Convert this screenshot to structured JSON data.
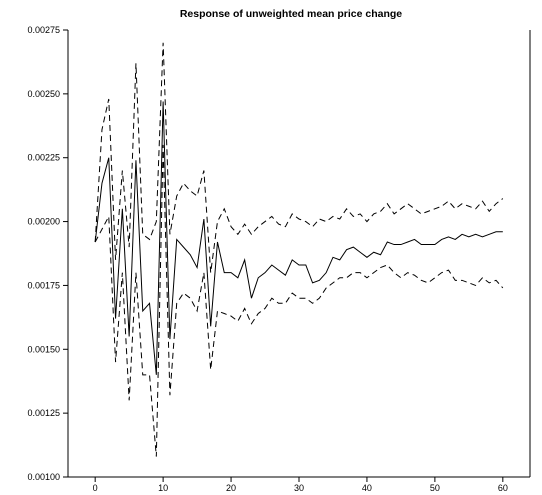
{
  "chart_data": {
    "type": "line",
    "title": "Response of unweighted mean price change",
    "xlabel": "",
    "ylabel": "",
    "xlim": [
      -4,
      64
    ],
    "ylim": [
      0.001,
      0.00275
    ],
    "x_ticks": [
      0,
      10,
      20,
      30,
      40,
      50,
      60
    ],
    "y_ticks": [
      "0.00100",
      "0.00125",
      "0.00150",
      "0.00175",
      "0.00200",
      "0.00225",
      "0.00250",
      "0.00275"
    ],
    "grid": false,
    "legend": "none",
    "x": [
      0,
      1,
      2,
      3,
      4,
      5,
      6,
      7,
      8,
      9,
      10,
      11,
      12,
      13,
      14,
      15,
      16,
      17,
      18,
      19,
      20,
      21,
      22,
      23,
      24,
      25,
      26,
      27,
      28,
      29,
      30,
      31,
      32,
      33,
      34,
      35,
      36,
      37,
      38,
      39,
      40,
      41,
      42,
      43,
      44,
      45,
      46,
      47,
      48,
      49,
      50,
      51,
      52,
      53,
      54,
      55,
      56,
      57,
      58,
      59,
      60
    ],
    "series": [
      {
        "style": "solid",
        "color": "#000000",
        "values": [
          0.00192,
          0.00215,
          0.00225,
          0.00162,
          0.00205,
          0.00155,
          0.00224,
          0.00165,
          0.00168,
          0.0014,
          0.00247,
          0.00154,
          0.00193,
          0.0019,
          0.00187,
          0.00182,
          0.00201,
          0.00159,
          0.00192,
          0.0018,
          0.0018,
          0.00178,
          0.00185,
          0.0017,
          0.00178,
          0.0018,
          0.00183,
          0.00181,
          0.00179,
          0.00185,
          0.00183,
          0.00183,
          0.00176,
          0.00177,
          0.0018,
          0.00186,
          0.00185,
          0.00189,
          0.0019,
          0.00188,
          0.00186,
          0.00188,
          0.00187,
          0.00192,
          0.00191,
          0.00191,
          0.00192,
          0.00193,
          0.00191,
          0.00191,
          0.00191,
          0.00193,
          0.00194,
          0.00193,
          0.00195,
          0.00194,
          0.00195,
          0.00194,
          0.00195,
          0.00196,
          0.00196
        ]
      },
      {
        "style": "dashed",
        "color": "#000000",
        "values": [
          0.00192,
          0.00236,
          0.00248,
          0.00185,
          0.0022,
          0.0019,
          0.00262,
          0.00195,
          0.00193,
          0.002,
          0.0027,
          0.00195,
          0.0021,
          0.00215,
          0.00212,
          0.0021,
          0.0022,
          0.0018,
          0.002,
          0.00205,
          0.00198,
          0.00195,
          0.00199,
          0.00195,
          0.00198,
          0.002,
          0.00202,
          0.00199,
          0.00198,
          0.00203,
          0.00201,
          0.002,
          0.00198,
          0.00201,
          0.002,
          0.00202,
          0.00201,
          0.00205,
          0.00202,
          0.00203,
          0.002,
          0.00203,
          0.00204,
          0.00207,
          0.00203,
          0.00205,
          0.00207,
          0.00205,
          0.00203,
          0.00204,
          0.00205,
          0.00206,
          0.00208,
          0.00205,
          0.00207,
          0.00206,
          0.00205,
          0.00208,
          0.00204,
          0.00207,
          0.00209
        ]
      },
      {
        "style": "dashed",
        "color": "#000000",
        "values": [
          0.00192,
          0.00197,
          0.00202,
          0.00145,
          0.0018,
          0.0013,
          0.0018,
          0.0014,
          0.0014,
          0.00108,
          0.0023,
          0.00132,
          0.00168,
          0.00172,
          0.0017,
          0.00165,
          0.0018,
          0.00142,
          0.00165,
          0.00164,
          0.00163,
          0.00161,
          0.00166,
          0.0016,
          0.00164,
          0.00166,
          0.0017,
          0.00168,
          0.00168,
          0.00172,
          0.0017,
          0.0017,
          0.00168,
          0.0017,
          0.00174,
          0.00176,
          0.00178,
          0.00178,
          0.0018,
          0.0018,
          0.00178,
          0.0018,
          0.00182,
          0.00183,
          0.0018,
          0.00178,
          0.0018,
          0.00179,
          0.00177,
          0.00176,
          0.00178,
          0.0018,
          0.00181,
          0.00177,
          0.00177,
          0.00176,
          0.00175,
          0.00178,
          0.00176,
          0.00177,
          0.00174
        ]
      }
    ]
  }
}
